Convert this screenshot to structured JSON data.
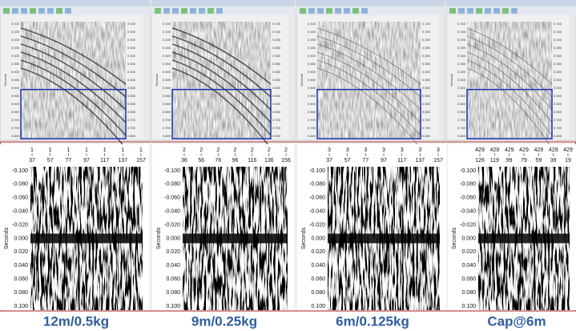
{
  "upper_y_ticks": [
    "0.100",
    "0.150",
    "0.200",
    "0.250",
    "0.300",
    "0.350",
    "0.400",
    "0.450",
    "0.500",
    "0.550",
    "0.600",
    "0.650",
    "0.700",
    "0.750",
    "0.800"
  ],
  "y_axis_label": "Seconds",
  "lower_y_ticks": [
    "-0.100",
    "-0.080",
    "-0.060",
    "-0.040",
    "-0.020",
    "0.000",
    "0.020",
    "0.040",
    "0.060",
    "0.080",
    "0.100"
  ],
  "panels": [
    {
      "caption": "12m/0.5kg",
      "header_row1": [
        "1",
        "1",
        "1",
        "1",
        "1",
        "1",
        "1"
      ],
      "header_row2": [
        "37",
        "57",
        "77",
        "97",
        "117",
        "137",
        "157"
      ]
    },
    {
      "caption": "9m/0.25kg",
      "header_row1": [
        "2",
        "2",
        "2",
        "2",
        "2",
        "2",
        "2"
      ],
      "header_row2": [
        "36",
        "56",
        "76",
        "96",
        "116",
        "136",
        "156"
      ]
    },
    {
      "caption": "6m/0.125kg",
      "header_row1": [
        "3",
        "3",
        "3",
        "3",
        "3",
        "3",
        "3"
      ],
      "header_row2": [
        "37",
        "57",
        "77",
        "97",
        "117",
        "137",
        "157"
      ]
    },
    {
      "caption": "Cap@6m",
      "header_row1": [
        "429",
        "429",
        "429",
        "429",
        "429",
        "429",
        "429"
      ],
      "header_row2": [
        "126",
        "119",
        "99",
        "79",
        "59",
        "39",
        "19"
      ]
    }
  ]
}
